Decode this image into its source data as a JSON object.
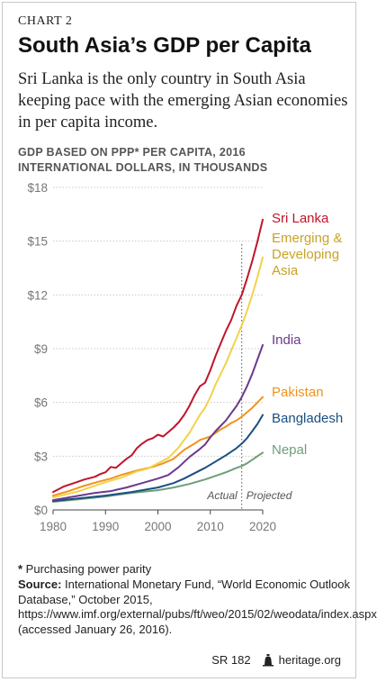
{
  "header": {
    "chart_label": "CHART 2",
    "title": "South Asia’s GDP per Capita",
    "subtitle": "Sri Lanka is the only country in South Asia keeping pace with the emerging Asian economies in per capita income.",
    "axis_caption_line1": "GDP BASED ON PPP* PER CAPITA, 2016",
    "axis_caption_line2": "INTERNATIONAL DOLLARS, IN THOUSANDS"
  },
  "chart_data": {
    "type": "line",
    "x_ticks": [
      1980,
      1990,
      2000,
      2010,
      2020
    ],
    "y_ticks": [
      "$0",
      "$3",
      "$6",
      "$9",
      "$12",
      "$15",
      "$18"
    ],
    "xlim": [
      1980,
      2020
    ],
    "ylim": [
      0,
      18
    ],
    "grid": "horizontal",
    "projection_start": 2016,
    "annotations": {
      "actual": "Actual",
      "projected": "Projected"
    },
    "series": [
      {
        "name": "Sri Lanka",
        "label_lines": [
          "Sri Lanka"
        ],
        "color": "#c0142b",
        "points": [
          [
            1980,
            1.0
          ],
          [
            1982,
            1.3
          ],
          [
            1984,
            1.5
          ],
          [
            1986,
            1.7
          ],
          [
            1988,
            1.85
          ],
          [
            1989,
            2.0
          ],
          [
            1990,
            2.1
          ],
          [
            1991,
            2.4
          ],
          [
            1992,
            2.35
          ],
          [
            1993,
            2.6
          ],
          [
            1994,
            2.85
          ],
          [
            1995,
            3.05
          ],
          [
            1996,
            3.45
          ],
          [
            1997,
            3.7
          ],
          [
            1998,
            3.9
          ],
          [
            1999,
            4.0
          ],
          [
            2000,
            4.2
          ],
          [
            2001,
            4.1
          ],
          [
            2002,
            4.35
          ],
          [
            2003,
            4.6
          ],
          [
            2004,
            4.9
          ],
          [
            2005,
            5.3
          ],
          [
            2006,
            5.8
          ],
          [
            2007,
            6.4
          ],
          [
            2008,
            6.9
          ],
          [
            2009,
            7.1
          ],
          [
            2010,
            7.8
          ],
          [
            2011,
            8.6
          ],
          [
            2012,
            9.3
          ],
          [
            2013,
            10.0
          ],
          [
            2014,
            10.6
          ],
          [
            2015,
            11.4
          ],
          [
            2016,
            12.0
          ],
          [
            2017,
            12.9
          ],
          [
            2018,
            13.9
          ],
          [
            2019,
            15.0
          ],
          [
            2020,
            16.2
          ]
        ]
      },
      {
        "name": "Emerging & Developing Asia",
        "label_lines": [
          "Emerging &",
          "Developing",
          "Asia"
        ],
        "color": "#f2d24a",
        "points": [
          [
            1980,
            0.7
          ],
          [
            1985,
            1.05
          ],
          [
            1990,
            1.55
          ],
          [
            1993,
            1.8
          ],
          [
            1996,
            2.15
          ],
          [
            1998,
            2.3
          ],
          [
            2000,
            2.6
          ],
          [
            2002,
            2.9
          ],
          [
            2004,
            3.5
          ],
          [
            2006,
            4.3
          ],
          [
            2008,
            5.3
          ],
          [
            2009,
            5.7
          ],
          [
            2010,
            6.3
          ],
          [
            2011,
            7.0
          ],
          [
            2012,
            7.6
          ],
          [
            2013,
            8.2
          ],
          [
            2014,
            8.9
          ],
          [
            2015,
            9.6
          ],
          [
            2016,
            10.3
          ],
          [
            2017,
            11.1
          ],
          [
            2018,
            12.0
          ],
          [
            2019,
            13.0
          ],
          [
            2020,
            14.1
          ]
        ]
      },
      {
        "name": "India",
        "label_lines": [
          "India"
        ],
        "color": "#6b3a8c",
        "points": [
          [
            1980,
            0.55
          ],
          [
            1984,
            0.75
          ],
          [
            1988,
            0.95
          ],
          [
            1991,
            1.05
          ],
          [
            1994,
            1.25
          ],
          [
            1997,
            1.5
          ],
          [
            2000,
            1.75
          ],
          [
            2002,
            1.95
          ],
          [
            2004,
            2.4
          ],
          [
            2006,
            2.95
          ],
          [
            2008,
            3.4
          ],
          [
            2009,
            3.65
          ],
          [
            2010,
            4.05
          ],
          [
            2011,
            4.4
          ],
          [
            2012,
            4.7
          ],
          [
            2013,
            5.0
          ],
          [
            2014,
            5.4
          ],
          [
            2015,
            5.8
          ],
          [
            2016,
            6.3
          ],
          [
            2017,
            6.9
          ],
          [
            2018,
            7.6
          ],
          [
            2019,
            8.4
          ],
          [
            2020,
            9.2
          ]
        ]
      },
      {
        "name": "Pakistan",
        "label_lines": [
          "Pakistan"
        ],
        "color": "#f0931e",
        "points": [
          [
            1980,
            0.8
          ],
          [
            1983,
            1.05
          ],
          [
            1986,
            1.35
          ],
          [
            1989,
            1.6
          ],
          [
            1991,
            1.75
          ],
          [
            1993,
            1.95
          ],
          [
            1996,
            2.2
          ],
          [
            1999,
            2.4
          ],
          [
            2001,
            2.6
          ],
          [
            2003,
            2.85
          ],
          [
            2005,
            3.35
          ],
          [
            2007,
            3.7
          ],
          [
            2008,
            3.9
          ],
          [
            2009,
            4.0
          ],
          [
            2010,
            4.1
          ],
          [
            2011,
            4.3
          ],
          [
            2012,
            4.5
          ],
          [
            2013,
            4.65
          ],
          [
            2014,
            4.85
          ],
          [
            2015,
            5.0
          ],
          [
            2016,
            5.2
          ],
          [
            2017,
            5.45
          ],
          [
            2018,
            5.7
          ],
          [
            2019,
            6.0
          ],
          [
            2020,
            6.3
          ]
        ]
      },
      {
        "name": "Bangladesh",
        "label_lines": [
          "Bangladesh"
        ],
        "color": "#1b4f80",
        "points": [
          [
            1980,
            0.5
          ],
          [
            1985,
            0.65
          ],
          [
            1990,
            0.8
          ],
          [
            1995,
            1.0
          ],
          [
            2000,
            1.25
          ],
          [
            2003,
            1.5
          ],
          [
            2005,
            1.75
          ],
          [
            2007,
            2.05
          ],
          [
            2009,
            2.35
          ],
          [
            2011,
            2.7
          ],
          [
            2013,
            3.05
          ],
          [
            2015,
            3.45
          ],
          [
            2016,
            3.7
          ],
          [
            2017,
            4.0
          ],
          [
            2018,
            4.4
          ],
          [
            2019,
            4.8
          ],
          [
            2020,
            5.3
          ]
        ]
      },
      {
        "name": "Nepal",
        "label_lines": [
          "Nepal"
        ],
        "color": "#6e9e7a",
        "points": [
          [
            1980,
            0.45
          ],
          [
            1985,
            0.6
          ],
          [
            1990,
            0.75
          ],
          [
            1995,
            0.95
          ],
          [
            2000,
            1.1
          ],
          [
            2003,
            1.25
          ],
          [
            2006,
            1.45
          ],
          [
            2009,
            1.7
          ],
          [
            2011,
            1.9
          ],
          [
            2013,
            2.1
          ],
          [
            2015,
            2.35
          ],
          [
            2016,
            2.45
          ],
          [
            2017,
            2.6
          ],
          [
            2018,
            2.8
          ],
          [
            2019,
            3.0
          ],
          [
            2020,
            3.2
          ]
        ]
      }
    ]
  },
  "notes": {
    "footnote_marker": "*",
    "footnote_text": " Purchasing power parity",
    "source_label": "Source:",
    "source_text": " International Monetary Fund, “World Economic Outlook Database,” October 2015, https://www.imf.org/external/pubs/ft/weo/2015/02/weodata/index.aspx (accessed January 26, 2016)."
  },
  "footer": {
    "report_id": "SR 182",
    "icon": "liberty-bell-icon",
    "site": "heritage.org"
  }
}
